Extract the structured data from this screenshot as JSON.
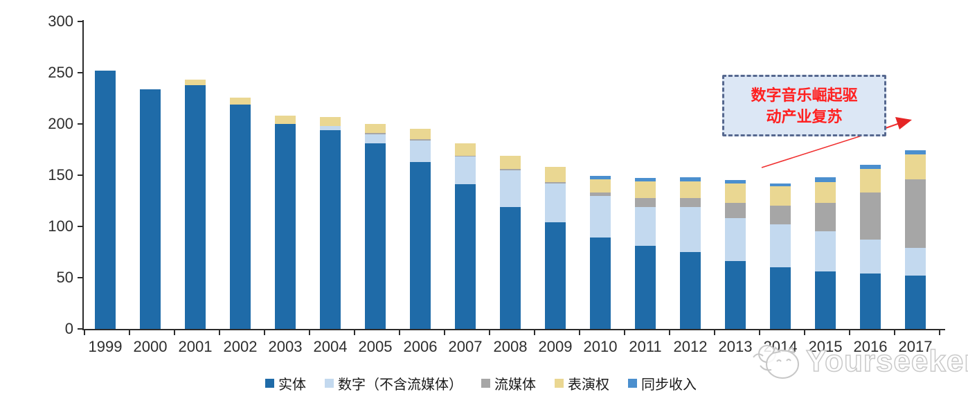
{
  "chart_data": {
    "type": "bar",
    "stacked": true,
    "title": "",
    "xlabel": "",
    "ylabel": "",
    "unit_note": "values as plotted on axis (0-300)",
    "categories": [
      "1999",
      "2000",
      "2001",
      "2002",
      "2003",
      "2004",
      "2005",
      "2006",
      "2007",
      "2008",
      "2009",
      "2010",
      "2011",
      "2012",
      "2013",
      "2014",
      "2015",
      "2016",
      "2017"
    ],
    "series": [
      {
        "name": "实体",
        "color": "#1F6BA8",
        "values": [
          252,
          234,
          238,
          219,
          200,
          194,
          181,
          163,
          141,
          119,
          104,
          89,
          81,
          75,
          66,
          60,
          56,
          54,
          52
        ]
      },
      {
        "name": "数字（不含流媒体）",
        "color": "#C3D9EF",
        "values": [
          0,
          0,
          0,
          0,
          0,
          4,
          9,
          21,
          27,
          36,
          38,
          41,
          38,
          44,
          42,
          42,
          39,
          33,
          27
        ]
      },
      {
        "name": "流媒体",
        "color": "#A6A6A6",
        "values": [
          0,
          0,
          0,
          0,
          0,
          0,
          1,
          1,
          1,
          1,
          1,
          3,
          9,
          9,
          15,
          18,
          28,
          46,
          67
        ]
      },
      {
        "name": "表演权",
        "color": "#EAD792",
        "values": [
          0,
          0,
          5,
          7,
          8,
          9,
          9,
          10,
          12,
          13,
          15,
          13,
          16,
          16,
          19,
          19,
          20,
          23,
          24
        ]
      },
      {
        "name": "同步收入",
        "color": "#4B8FCE",
        "values": [
          0,
          0,
          0,
          0,
          0,
          0,
          0,
          0,
          0,
          0,
          0,
          3,
          3,
          4,
          3,
          3,
          5,
          4,
          4
        ]
      }
    ],
    "totals": [
      252,
      234,
      243,
      226,
      208,
      207,
      200,
      195,
      181,
      169,
      158,
      149,
      147,
      148,
      145,
      142,
      148,
      160,
      174
    ],
    "ylim": [
      0,
      300
    ],
    "yticks": [
      0,
      50,
      100,
      150,
      200,
      250,
      300
    ],
    "grid": false,
    "legend_position": "bottom"
  },
  "annotation": {
    "line1": "数字音乐崛起驱",
    "line2": "动产业复苏",
    "text_color": "#FF2020",
    "box_fill": "#DCE7F5",
    "border_color": "#56688F",
    "arrow_color": "#F03030"
  },
  "watermark": {
    "text": "Yourseeker"
  }
}
